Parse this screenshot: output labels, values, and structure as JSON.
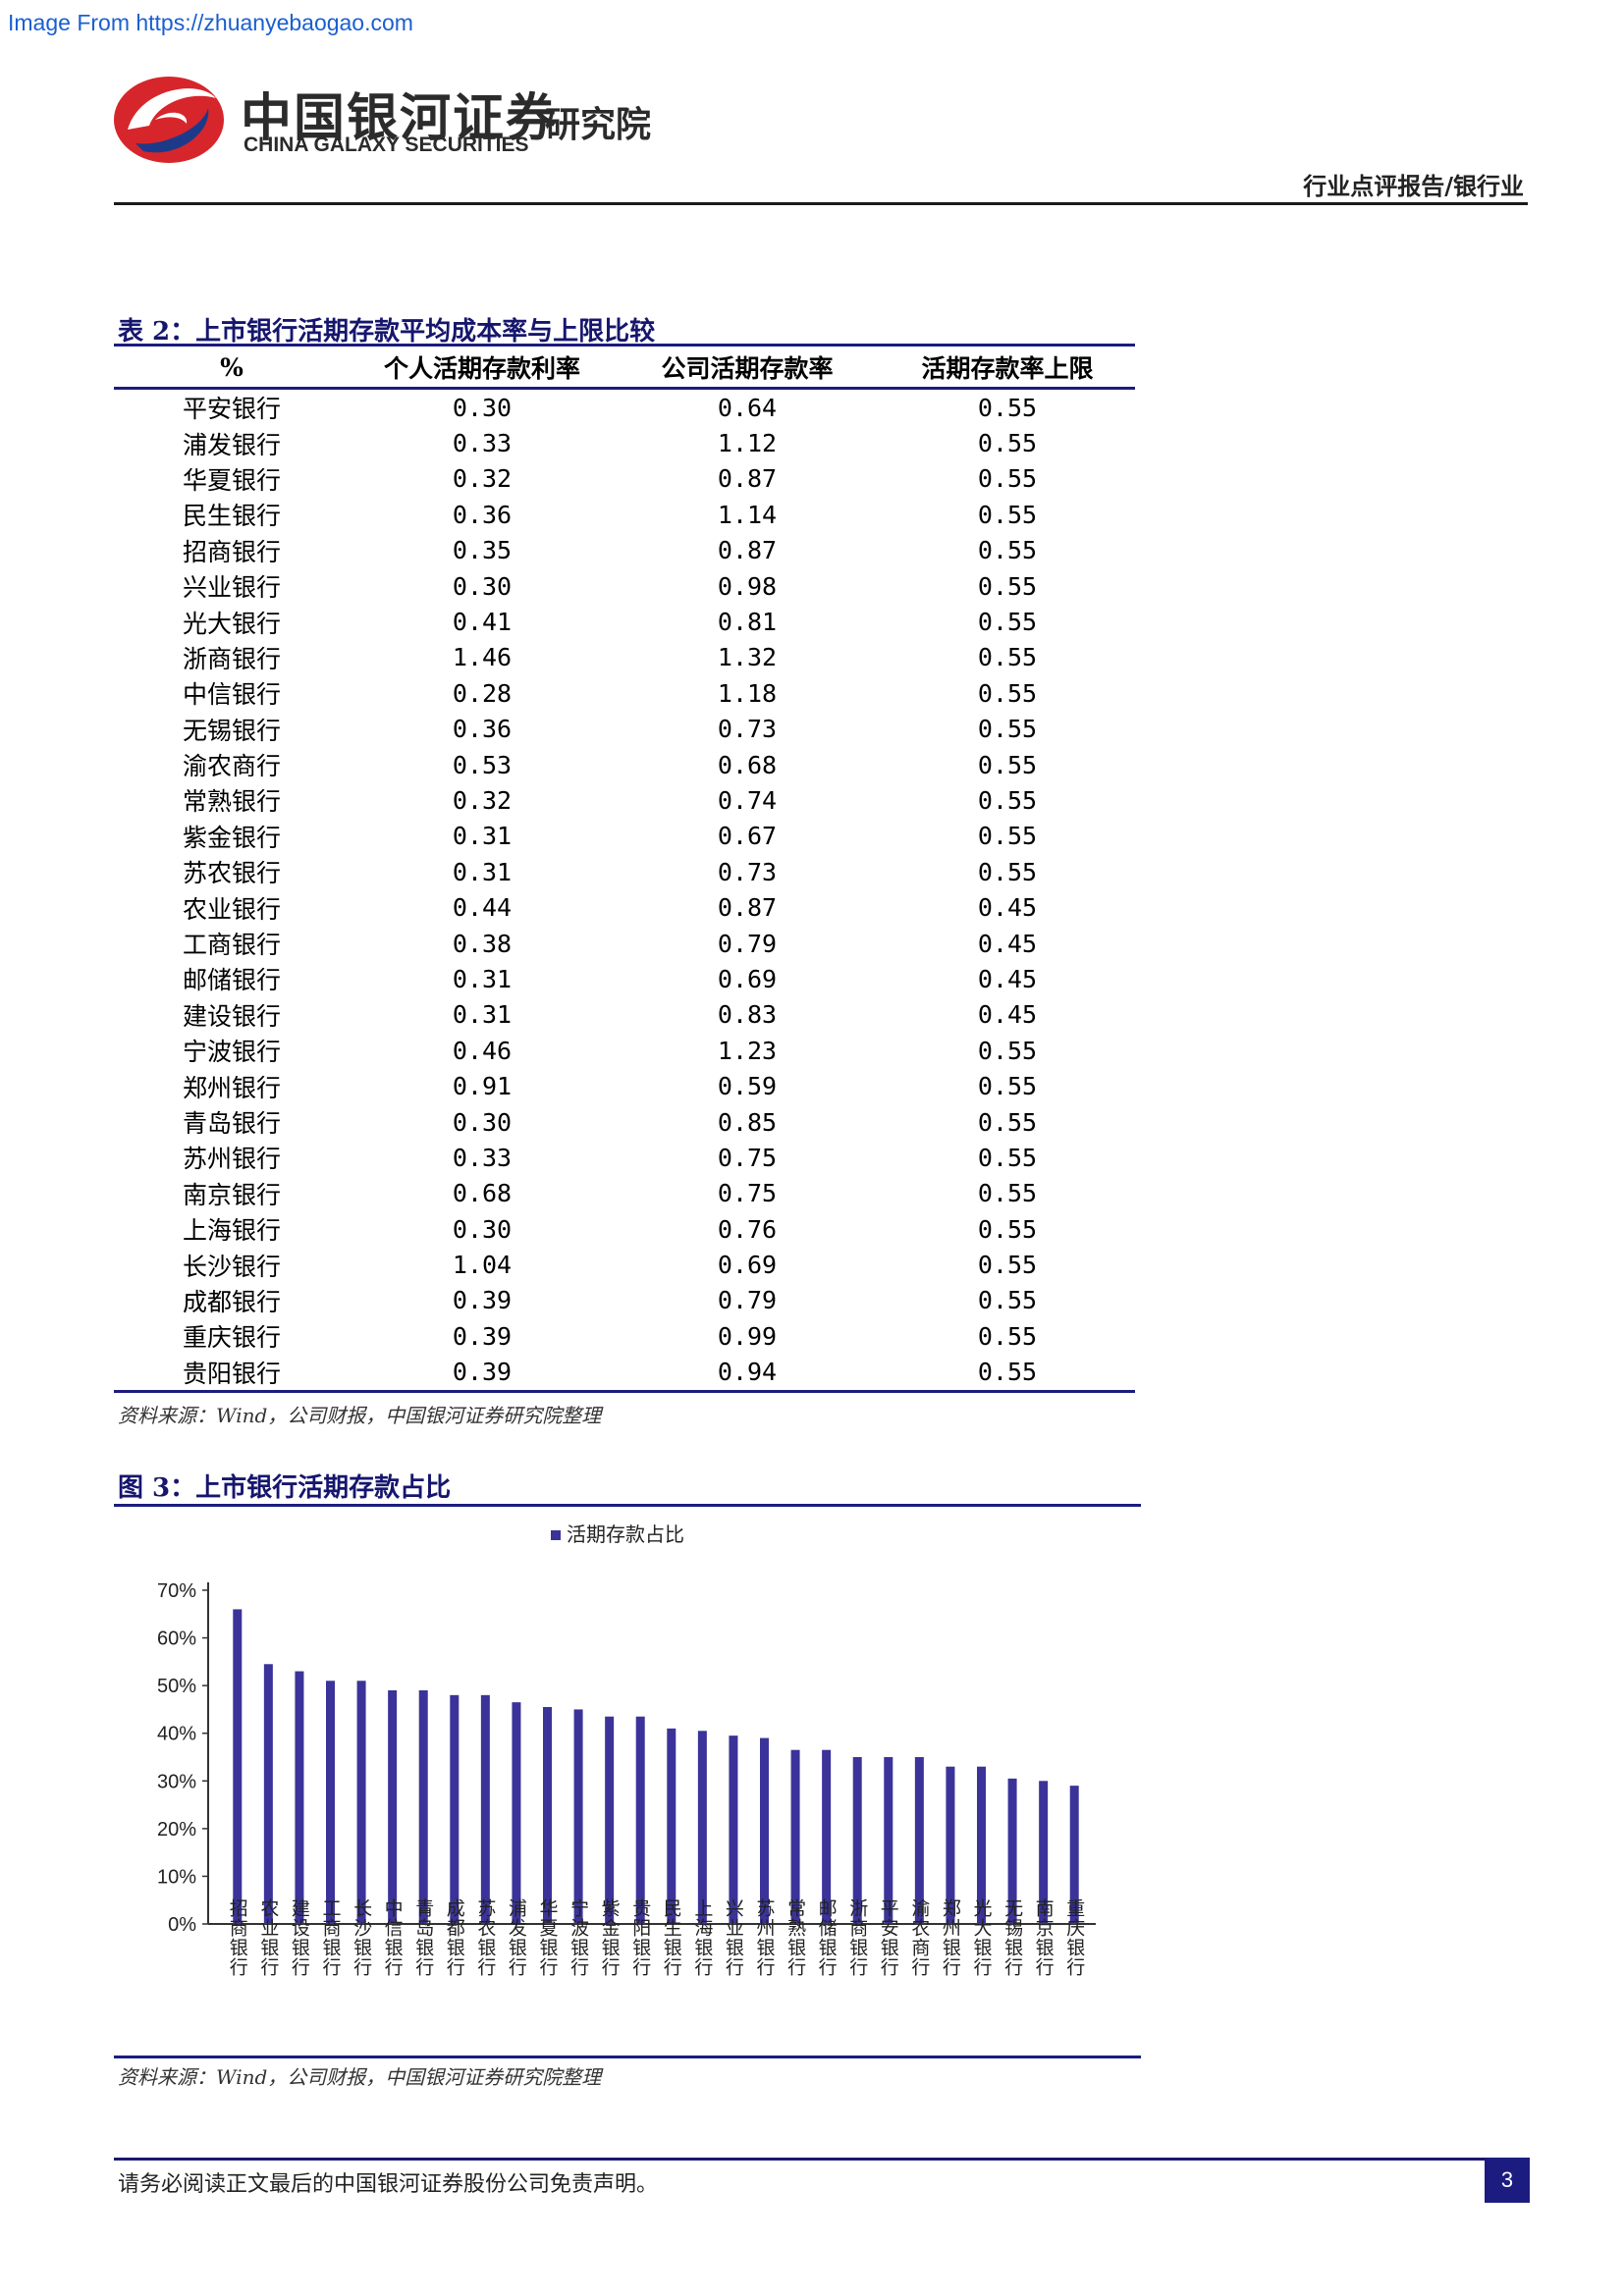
{
  "watermark": "Image From https://zhuanyebaogao.com",
  "header": {
    "logo_cn": "中国银河证券",
    "logo_en": "CHINA GALAXY SECURITIES",
    "institute": "研究院",
    "category": "行业点评报告/银行业"
  },
  "table": {
    "title": "表 2：上市银行活期存款平均成本率与上限比较",
    "columns": [
      "%",
      "个人活期存款利率",
      "公司活期存款率",
      "活期存款率上限"
    ],
    "rows": [
      [
        "平安银行",
        "0.30",
        "0.64",
        "0.55"
      ],
      [
        "浦发银行",
        "0.33",
        "1.12",
        "0.55"
      ],
      [
        "华夏银行",
        "0.32",
        "0.87",
        "0.55"
      ],
      [
        "民生银行",
        "0.36",
        "1.14",
        "0.55"
      ],
      [
        "招商银行",
        "0.35",
        "0.87",
        "0.55"
      ],
      [
        "兴业银行",
        "0.30",
        "0.98",
        "0.55"
      ],
      [
        "光大银行",
        "0.41",
        "0.81",
        "0.55"
      ],
      [
        "浙商银行",
        "1.46",
        "1.32",
        "0.55"
      ],
      [
        "中信银行",
        "0.28",
        "1.18",
        "0.55"
      ],
      [
        "无锡银行",
        "0.36",
        "0.73",
        "0.55"
      ],
      [
        "渝农商行",
        "0.53",
        "0.68",
        "0.55"
      ],
      [
        "常熟银行",
        "0.32",
        "0.74",
        "0.55"
      ],
      [
        "紫金银行",
        "0.31",
        "0.67",
        "0.55"
      ],
      [
        "苏农银行",
        "0.31",
        "0.73",
        "0.55"
      ],
      [
        "农业银行",
        "0.44",
        "0.87",
        "0.45"
      ],
      [
        "工商银行",
        "0.38",
        "0.79",
        "0.45"
      ],
      [
        "邮储银行",
        "0.31",
        "0.69",
        "0.45"
      ],
      [
        "建设银行",
        "0.31",
        "0.83",
        "0.45"
      ],
      [
        "宁波银行",
        "0.46",
        "1.23",
        "0.55"
      ],
      [
        "郑州银行",
        "0.91",
        "0.59",
        "0.55"
      ],
      [
        "青岛银行",
        "0.30",
        "0.85",
        "0.55"
      ],
      [
        "苏州银行",
        "0.33",
        "0.75",
        "0.55"
      ],
      [
        "南京银行",
        "0.68",
        "0.75",
        "0.55"
      ],
      [
        "上海银行",
        "0.30",
        "0.76",
        "0.55"
      ],
      [
        "长沙银行",
        "1.04",
        "0.69",
        "0.55"
      ],
      [
        "成都银行",
        "0.39",
        "0.79",
        "0.55"
      ],
      [
        "重庆银行",
        "0.39",
        "0.99",
        "0.55"
      ],
      [
        "贵阳银行",
        "0.39",
        "0.94",
        "0.55"
      ]
    ],
    "source": "资料来源：Wind，公司财报，中国银河证券研究院整理"
  },
  "chart_title": "图 3：上市银行活期存款占比",
  "chart_data": {
    "type": "bar",
    "title": "",
    "series": [
      {
        "name": "活期存款占比",
        "color": "#3b3399",
        "values": [
          66,
          54.5,
          53,
          51,
          51,
          49,
          49,
          48,
          48,
          46.5,
          45.5,
          45,
          43.5,
          43.5,
          41,
          40.5,
          39.5,
          39,
          36.5,
          36.5,
          35,
          35,
          35,
          33,
          33,
          30.5,
          30,
          29
        ]
      }
    ],
    "categories": [
      "招商银行",
      "农业银行",
      "建设银行",
      "工商银行",
      "长沙银行",
      "中信银行",
      "青岛银行",
      "成都银行",
      "苏农银行",
      "浦发银行",
      "华夏银行",
      "宁波银行",
      "紫金银行",
      "贵阳银行",
      "民生银行",
      "上海银行",
      "兴业银行",
      "苏州银行",
      "常熟银行",
      "邮储银行",
      "浙商银行",
      "平安银行",
      "渝农商行",
      "郑州银行",
      "光大银行",
      "无锡银行",
      "南京银行",
      "重庆银行"
    ],
    "ylim": [
      0,
      70
    ],
    "yticks": [
      "0%",
      "10%",
      "20%",
      "30%",
      "40%",
      "50%",
      "60%",
      "70%"
    ],
    "legend_position": "top-center",
    "grid": false,
    "source": "资料来源：Wind，公司财报，中国银河证券研究院整理"
  },
  "footer": {
    "disclaimer": "请务必阅读正文最后的中国银河证券股份公司免责声明。",
    "page_number": "3"
  }
}
